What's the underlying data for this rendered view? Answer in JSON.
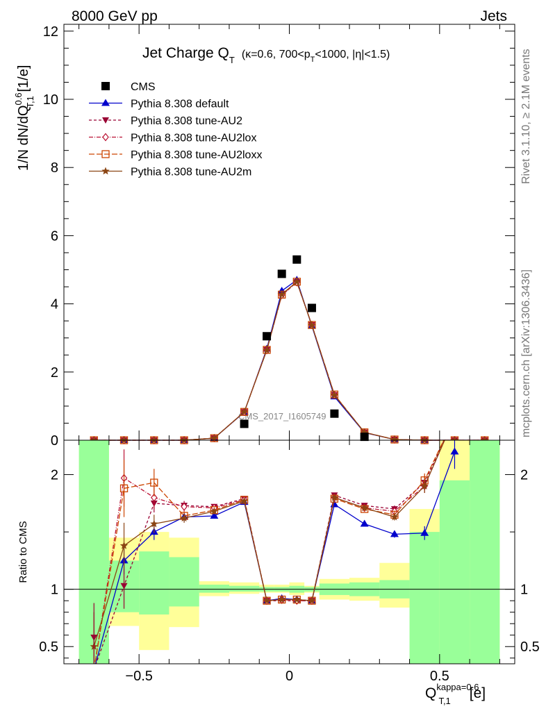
{
  "header": {
    "left": "8000 GeV pp",
    "right": "Jets"
  },
  "title": {
    "main": "Jet Charge Q",
    "main_sub": "T",
    "cond1": "(κ=0.6, 700<p",
    "cond1_sub": "T",
    "cond2": "<1000, |η|<1.5)"
  },
  "ylabel": {
    "a": "1/N dN/dQ",
    "sup": "0.6",
    "sub": "T,1",
    "b": " [1/e]"
  },
  "ratio_ylabel": "Ratio to CMS",
  "xlabel": {
    "q": "Q",
    "sup": "kappa=0.6",
    "sub": "T,1",
    "unit": "[e]"
  },
  "side_top": "Rivet 3.1.10, ≥ 2.1M events",
  "side_bottom": "mcplots.cern.ch [arXiv:1306.3436]",
  "watermark": "CMS_2017_I1605749",
  "colors": {
    "cms": "#000000",
    "default": "#0000cc",
    "au2": "#990033",
    "au2lox": "#bb1133",
    "au2loxx": "#cc4400",
    "au2m": "#8b4513",
    "band_green": "#99ff99",
    "band_yellow": "#ffff99"
  },
  "chart_data": [
    {
      "type": "scatter",
      "name": "main",
      "xlim": [
        -0.75,
        0.75
      ],
      "ylim": [
        0,
        12.2
      ],
      "yticks": [
        0,
        2,
        4,
        6,
        8,
        10,
        12
      ],
      "x": [
        -0.65,
        -0.55,
        -0.45,
        -0.35,
        -0.25,
        -0.15,
        -0.075,
        -0.025,
        0.025,
        0.075,
        0.15,
        0.25,
        0.35,
        0.45,
        0.55,
        0.65
      ],
      "cms": [
        0.0,
        0.0,
        0.0,
        0.0,
        0.0,
        0.48,
        3.05,
        4.88,
        5.3,
        3.88,
        0.78,
        0.1,
        0.0,
        0.0,
        0.0,
        0.0
      ],
      "series": [
        {
          "name": "Pythia 8.308 default",
          "key": "default",
          "values": [
            0.0,
            0.0,
            0.0,
            0.0,
            0.06,
            0.82,
            2.68,
            4.38,
            4.7,
            3.35,
            1.28,
            0.22,
            0.02,
            0.0,
            0.0,
            0.0
          ]
        },
        {
          "name": "Pythia 8.308 tune-AU2",
          "key": "au2",
          "values": [
            0.0,
            0.0,
            0.0,
            0.0,
            0.06,
            0.83,
            2.65,
            4.25,
            4.64,
            3.38,
            1.33,
            0.23,
            0.02,
            0.0,
            0.0,
            0.0
          ]
        },
        {
          "name": "Pythia 8.308 tune-AU2lox",
          "key": "au2lox",
          "values": [
            0.0,
            0.0,
            0.0,
            0.0,
            0.06,
            0.83,
            2.64,
            4.26,
            4.63,
            3.38,
            1.33,
            0.23,
            0.02,
            0.0,
            0.0,
            0.0
          ]
        },
        {
          "name": "Pythia 8.308 tune-AU2loxx",
          "key": "au2loxx",
          "values": [
            0.0,
            0.0,
            0.0,
            0.0,
            0.06,
            0.83,
            2.65,
            4.27,
            4.65,
            3.38,
            1.34,
            0.23,
            0.02,
            0.0,
            0.0,
            0.0
          ]
        },
        {
          "name": "Pythia 8.308 tune-AU2m",
          "key": "au2m",
          "values": [
            0.0,
            0.0,
            0.0,
            0.0,
            0.06,
            0.83,
            2.64,
            4.28,
            4.65,
            3.37,
            1.32,
            0.23,
            0.02,
            0.0,
            0.0,
            0.0
          ]
        }
      ],
      "legend_entry": "CMS"
    },
    {
      "type": "line",
      "name": "ratio",
      "xlim": [
        -0.75,
        0.75
      ],
      "ylim": [
        0.35,
        2.3
      ],
      "yticks": [
        0.5,
        1,
        2
      ],
      "xticks": [
        -0.5,
        0,
        0.5
      ],
      "band_edges": [
        -0.7,
        -0.6,
        -0.5,
        -0.4,
        -0.3,
        -0.2,
        -0.1,
        -0.05,
        0.0,
        0.05,
        0.1,
        0.2,
        0.3,
        0.4,
        0.5,
        0.6,
        0.7
      ],
      "band_green": [
        [
          0.35,
          2.3
        ],
        [
          0.8,
          1.25
        ],
        [
          0.78,
          1.33
        ],
        [
          0.85,
          1.28
        ],
        [
          0.97,
          1.04
        ],
        [
          0.98,
          1.03
        ],
        [
          0.98,
          1.02
        ],
        [
          0.98,
          1.02
        ],
        [
          0.97,
          1.03
        ],
        [
          0.98,
          1.02
        ],
        [
          0.95,
          1.05
        ],
        [
          0.94,
          1.06
        ],
        [
          0.92,
          1.08
        ],
        [
          0.35,
          1.5
        ],
        [
          0.35,
          1.95
        ],
        [
          0.35,
          2.3
        ]
      ],
      "band_yellow": [
        [
          0.35,
          2.3
        ],
        [
          0.68,
          1.45
        ],
        [
          0.47,
          1.5
        ],
        [
          0.67,
          1.45
        ],
        [
          0.94,
          1.07
        ],
        [
          0.96,
          1.06
        ],
        [
          0.97,
          1.04
        ],
        [
          0.97,
          1.04
        ],
        [
          0.95,
          1.06
        ],
        [
          0.97,
          1.03
        ],
        [
          0.91,
          1.09
        ],
        [
          0.9,
          1.1
        ],
        [
          0.84,
          1.23
        ],
        [
          0.35,
          1.7
        ],
        [
          0.35,
          2.3
        ],
        [
          0.35,
          2.3
        ]
      ],
      "series": [
        {
          "key": "default",
          "points": [
            [
              -0.65,
              0.3
            ],
            [
              -0.55,
              1.25
            ],
            [
              -0.45,
              1.5
            ],
            [
              -0.35,
              1.63
            ],
            [
              -0.25,
              1.64
            ],
            [
              -0.15,
              1.76
            ],
            [
              -0.075,
              0.9
            ],
            [
              -0.025,
              0.92
            ],
            [
              0.025,
              0.91
            ],
            [
              0.075,
              0.9
            ],
            [
              0.15,
              1.74
            ],
            [
              0.25,
              1.57
            ],
            [
              0.35,
              1.48
            ],
            [
              0.45,
              1.49
            ],
            [
              0.55,
              2.2
            ]
          ],
          "err": [
            0,
            0.12,
            0.07,
            0.04,
            0.02,
            0.01,
            0.01,
            0.01,
            0.01,
            0.01,
            0.01,
            0.02,
            0.03,
            0.06,
            0.15
          ]
        },
        {
          "key": "au2",
          "points": [
            [
              -0.65,
              0.3
            ],
            [
              -0.55,
              1.03
            ],
            [
              -0.45,
              1.75
            ],
            [
              -0.35,
              1.73
            ],
            [
              -0.25,
              1.72
            ],
            [
              -0.15,
              1.79
            ],
            [
              -0.075,
              0.9
            ],
            [
              -0.025,
              0.9
            ],
            [
              0.025,
              0.9
            ],
            [
              0.075,
              0.9
            ],
            [
              0.15,
              1.82
            ],
            [
              0.25,
              1.73
            ],
            [
              0.35,
              1.7
            ],
            [
              0.45,
              1.93
            ],
            [
              0.55,
              2.5
            ]
          ],
          "err": [
            0,
            0.2,
            0.08,
            0.04,
            0.02,
            0.01,
            0.01,
            0.01,
            0.01,
            0.01,
            0.01,
            0.02,
            0.03,
            0.06,
            0.1
          ]
        },
        {
          "key": "au2lox",
          "points": [
            [
              -0.65,
              0.3
            ],
            [
              -0.55,
              1.97
            ],
            [
              -0.45,
              1.8
            ],
            [
              -0.35,
              1.72
            ],
            [
              -0.25,
              1.71
            ],
            [
              -0.15,
              1.78
            ],
            [
              -0.075,
              0.9
            ],
            [
              -0.025,
              0.91
            ],
            [
              0.025,
              0.9
            ],
            [
              0.075,
              0.9
            ],
            [
              0.15,
              1.8
            ],
            [
              0.25,
              1.71
            ],
            [
              0.35,
              1.68
            ],
            [
              0.45,
              1.9
            ],
            [
              0.55,
              2.5
            ]
          ],
          "err": [
            0,
            0.25,
            0.1,
            0.04,
            0.02,
            0.01,
            0.01,
            0.01,
            0.01,
            0.01,
            0.01,
            0.02,
            0.03,
            0.06,
            0.1
          ]
        },
        {
          "key": "au2loxx",
          "points": [
            [
              -0.65,
              0.3
            ],
            [
              -0.55,
              1.88
            ],
            [
              -0.45,
              1.93
            ],
            [
              -0.35,
              1.64
            ],
            [
              -0.25,
              1.69
            ],
            [
              -0.15,
              1.78
            ],
            [
              -0.075,
              0.9
            ],
            [
              -0.025,
              0.91
            ],
            [
              0.025,
              0.91
            ],
            [
              0.075,
              0.9
            ],
            [
              0.15,
              1.79
            ],
            [
              0.25,
              1.7
            ],
            [
              0.35,
              1.65
            ],
            [
              0.45,
              1.95
            ],
            [
              0.55,
              2.5
            ]
          ],
          "err": [
            0,
            0.25,
            0.12,
            0.04,
            0.02,
            0.01,
            0.01,
            0.01,
            0.01,
            0.01,
            0.01,
            0.02,
            0.03,
            0.06,
            0.1
          ]
        },
        {
          "key": "au2m",
          "points": [
            [
              -0.65,
              0.5
            ],
            [
              -0.55,
              1.38
            ],
            [
              -0.45,
              1.57
            ],
            [
              -0.35,
              1.62
            ],
            [
              -0.25,
              1.68
            ],
            [
              -0.15,
              1.77
            ],
            [
              -0.075,
              0.9
            ],
            [
              -0.025,
              0.91
            ],
            [
              0.025,
              0.91
            ],
            [
              0.075,
              0.9
            ],
            [
              0.15,
              1.8
            ],
            [
              0.25,
              1.71
            ],
            [
              0.35,
              1.63
            ],
            [
              0.45,
              1.9
            ],
            [
              0.55,
              2.5
            ]
          ],
          "err": [
            0.3,
            0.2,
            0.08,
            0.04,
            0.02,
            0.01,
            0.01,
            0.01,
            0.01,
            0.01,
            0.01,
            0.02,
            0.03,
            0.06,
            0.1
          ]
        },
        {
          "key": "au2m_extra",
          "points": [
            [
              -0.65,
              0.58
            ]
          ],
          "err": [
            0.3
          ]
        }
      ],
      "reference": 1
    }
  ]
}
